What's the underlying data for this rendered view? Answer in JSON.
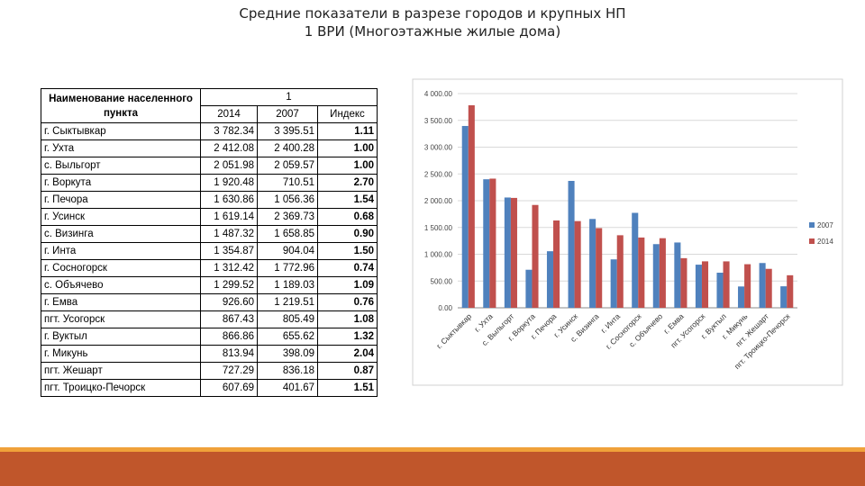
{
  "title": [
    "Средние показатели в разрезе городов и крупных НП",
    "1 ВРИ (Многоэтажные жилые дома)"
  ],
  "table": {
    "header": {
      "name": "Наименование населенного пункта",
      "group": "1",
      "columns": [
        "2014",
        "2007",
        "Индекс"
      ]
    },
    "rows": [
      [
        "г. Сыктывкар",
        "3 782.34",
        "3 395.51",
        "1.11"
      ],
      [
        "г. Ухта",
        "2 412.08",
        "2 400.28",
        "1.00"
      ],
      [
        "с. Выльгорт",
        "2 051.98",
        "2 059.57",
        "1.00"
      ],
      [
        "г. Воркута",
        "1 920.48",
        "710.51",
        "2.70"
      ],
      [
        "г. Печора",
        "1 630.86",
        "1 056.36",
        "1.54"
      ],
      [
        "г. Усинск",
        "1 619.14",
        "2 369.73",
        "0.68"
      ],
      [
        "с. Визинга",
        "1 487.32",
        "1 658.85",
        "0.90"
      ],
      [
        "г. Инта",
        "1 354.87",
        "904.04",
        "1.50"
      ],
      [
        "г. Сосногорск",
        "1 312.42",
        "1 772.96",
        "0.74"
      ],
      [
        "с. Объячево",
        "1 299.52",
        "1 189.03",
        "1.09"
      ],
      [
        "г. Емва",
        "926.60",
        "1 219.51",
        "0.76"
      ],
      [
        "пгт. Усогорск",
        "867.43",
        "805.49",
        "1.08"
      ],
      [
        "г. Вуктыл",
        "866.86",
        "655.62",
        "1.32"
      ],
      [
        "г. Микунь",
        "813.94",
        "398.09",
        "2.04"
      ],
      [
        "пгт. Жешарт",
        "727.29",
        "836.18",
        "0.87"
      ],
      [
        "пгт. Троицко-Печорск",
        "607.69",
        "401.67",
        "1.51"
      ]
    ]
  },
  "chart_data": {
    "type": "bar",
    "categories": [
      "г. Сыктывкар",
      "г. Ухта",
      "с. Выльгорт",
      "г. Воркута",
      "г. Печора",
      "г. Усинск",
      "с. Визинга",
      "г. Инта",
      "г. Сосногорск",
      "с. Объячево",
      "г. Емва",
      "пгт. Усогорск",
      "г. Вуктыл",
      "г. Микунь",
      "пгт. Жешарт",
      "пгт. Троицко-Печорск"
    ],
    "series": [
      {
        "name": "2007",
        "color": "#4f81bd",
        "values": [
          3395.51,
          2400.28,
          2059.57,
          710.51,
          1056.36,
          2369.73,
          1658.85,
          904.04,
          1772.96,
          1189.03,
          1219.51,
          805.49,
          655.62,
          398.09,
          836.18,
          401.67
        ]
      },
      {
        "name": "2014",
        "color": "#c0504d",
        "values": [
          3782.34,
          2412.08,
          2051.98,
          1920.48,
          1630.86,
          1619.14,
          1487.32,
          1354.87,
          1312.42,
          1299.52,
          926.6,
          867.43,
          866.86,
          813.94,
          727.29,
          607.69
        ]
      }
    ],
    "ylim": [
      0,
      4000
    ],
    "yticks": [
      {
        "value": 0,
        "label": "0.00"
      },
      {
        "value": 500,
        "label": "500.00"
      },
      {
        "value": 1000,
        "label": "1 000.00"
      },
      {
        "value": 1500,
        "label": "1 500.00"
      },
      {
        "value": 2000,
        "label": "2 000.00"
      },
      {
        "value": 2500,
        "label": "2 500.00"
      },
      {
        "value": 3000,
        "label": "3 000.00"
      },
      {
        "value": 3500,
        "label": "3 500.00"
      },
      {
        "value": 4000,
        "label": "4 000.00"
      }
    ],
    "grid": true,
    "legend": "right"
  }
}
